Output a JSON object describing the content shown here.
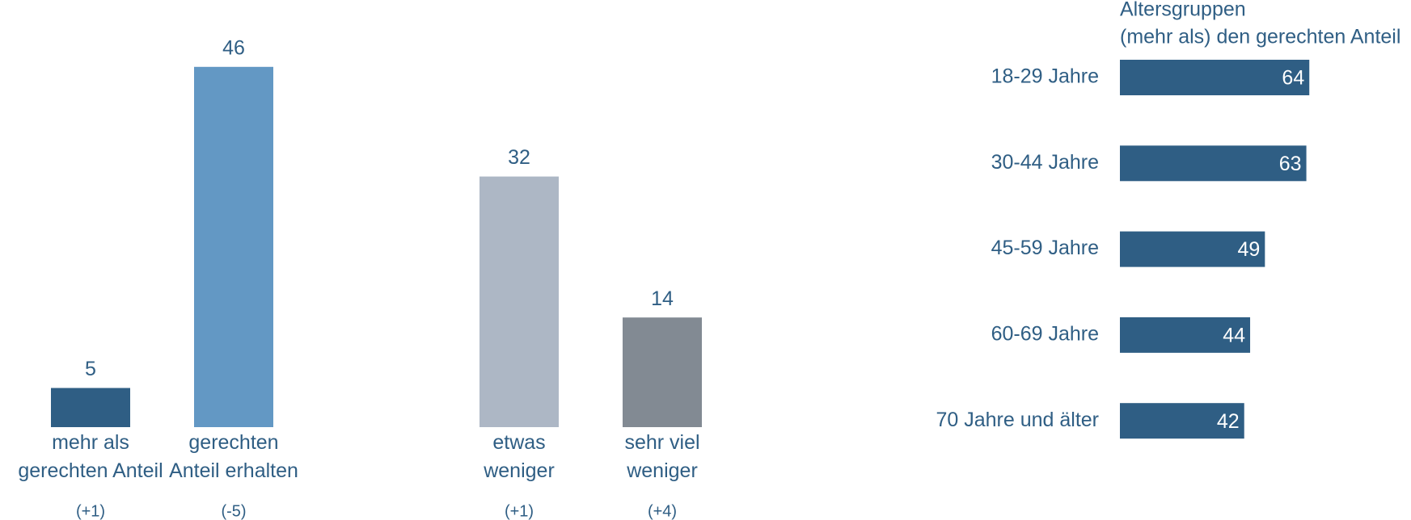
{
  "chart_data": [
    {
      "type": "bar",
      "categories": [
        "mehr als\ngerechten Anteil",
        "gerechten\nAnteil erhalten",
        "etwas\nweniger",
        "sehr viel\nweniger"
      ],
      "values": [
        5,
        46,
        32,
        14
      ],
      "colors": [
        "#2f5e84",
        "#6398c4",
        "#adb7c5",
        "#828a93"
      ],
      "change_labels": [
        "(+1)",
        "(-5)",
        "(+1)",
        "(+4)"
      ]
    },
    {
      "type": "hbar",
      "title": "Altersgruppen",
      "subtitle": "(mehr als) den gerechten Anteil",
      "categories": [
        "18-29 Jahre",
        "30-44 Jahre",
        "45-59 Jahre",
        "60-69 Jahre",
        "70 Jahre und älter"
      ],
      "values": [
        64,
        63,
        49,
        44,
        42
      ],
      "color": "#2f5e84"
    }
  ]
}
